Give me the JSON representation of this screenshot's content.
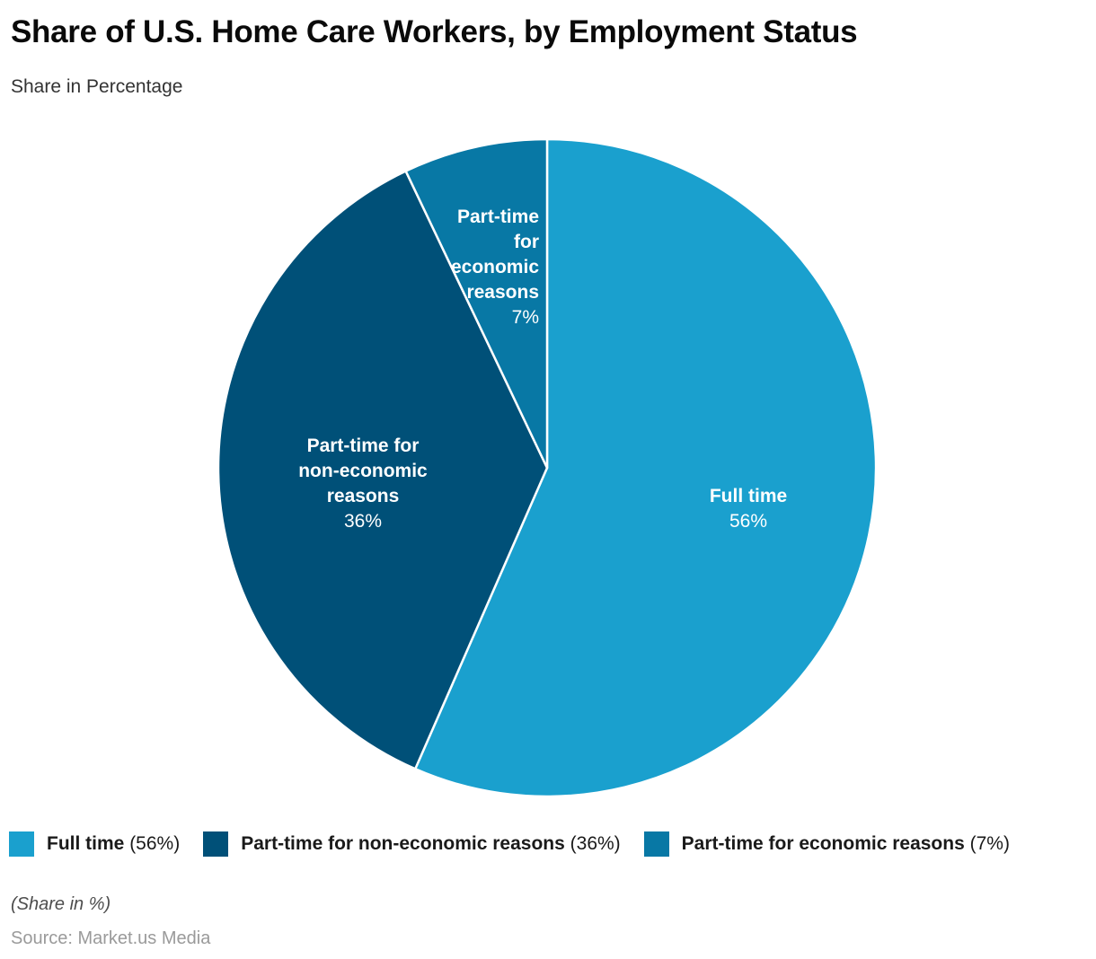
{
  "header": {
    "title": "Share of U.S. Home Care Workers, by Employment Status",
    "subtitle": "Share in Percentage"
  },
  "chart_data": {
    "type": "pie",
    "title": "Share of U.S. Home Care Workers, by Employment Status",
    "subtitle": "Share in Percentage",
    "unit": "%",
    "start_angle_deg": 0,
    "direction": "clockwise",
    "normalize_to_sum": true,
    "legend_position": "bottom",
    "slice_border_color": "#ffffff",
    "slices": [
      {
        "label": "Full time",
        "value": 56,
        "color": "#1aa0ce"
      },
      {
        "label": "Part-time for non-economic reasons",
        "value": 36,
        "color": "#005078"
      },
      {
        "label": "Part-time for economic reasons",
        "value": 7,
        "color": "#0878a5"
      }
    ]
  },
  "pie_labels": [
    {
      "lines": [
        "Full time"
      ],
      "pct": "56%"
    },
    {
      "lines": [
        "Part-time for",
        "non-economic",
        "reasons"
      ],
      "pct": "36%"
    },
    {
      "lines": [
        "Part-time",
        "for",
        "economic",
        "reasons"
      ],
      "pct": "7%"
    }
  ],
  "legend": {
    "items": [
      {
        "name": "Full time",
        "pct": "(56%)"
      },
      {
        "name": "Part-time for non-economic reasons",
        "pct": "(36%)"
      },
      {
        "name": "Part-time for economic reasons",
        "pct": "(7%)"
      }
    ]
  },
  "footer": {
    "note": "(Share in %)",
    "source": "Source: Market.us Media"
  }
}
